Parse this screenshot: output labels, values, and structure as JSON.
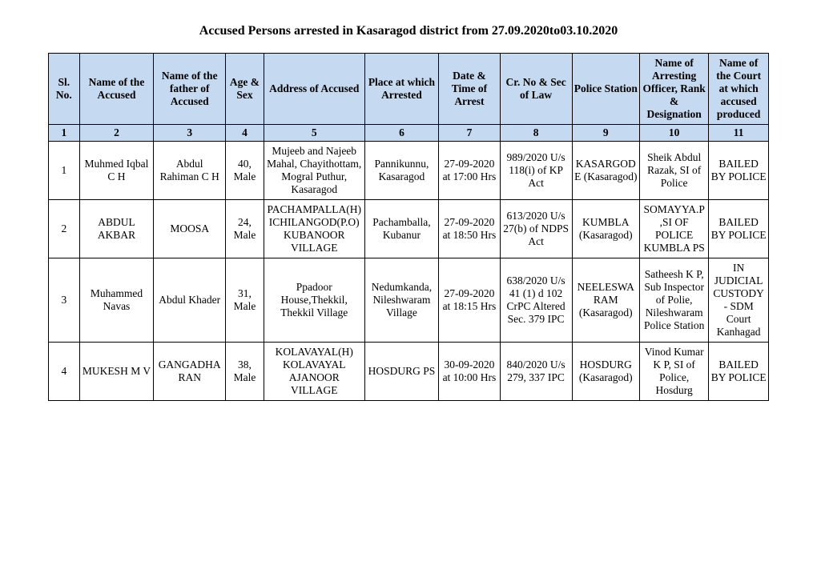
{
  "title": "Accused Persons arrested in   Kasaragod   district from  27.09.2020to03.10.2020",
  "headers": [
    "Sl. No.",
    "Name of the Accused",
    "Name of the father of Accused",
    "Age & Sex",
    "Address of Accused",
    "Place at which Arrested",
    "Date & Time of Arrest",
    "Cr. No & Sec of Law",
    "Police Station",
    "Name of Arresting Officer, Rank & Designation",
    "Name of the Court at which accused produced"
  ],
  "numrow": [
    "1",
    "2",
    "3",
    "4",
    "5",
    "6",
    "7",
    "8",
    "9",
    "10",
    "11"
  ],
  "rows": [
    {
      "c1": "1",
      "c2": "Muhmed Iqbal C H",
      "c3": "Abdul Rahiman C H",
      "c4": "40, Male",
      "c5": "Mujeeb and Najeeb Mahal, Chayithottam, Mogral Puthur, Kasaragod",
      "c6": "Pannikunnu, Kasaragod",
      "c7": "27-09-2020 at 17:00 Hrs",
      "c8": "989/2020 U/s 118(i) of KP Act",
      "c9": "KASARGODE (Kasaragod)",
      "c10": "Sheik Abdul Razak, SI of Police",
      "c11": "BAILED BY POLICE"
    },
    {
      "c1": "2",
      "c2": "ABDUL AKBAR",
      "c3": "MOOSA",
      "c4": "24, Male",
      "c5": "PACHAMPALLA(H) ICHILANGOD(P.O) KUBANOOR VILLAGE",
      "c6": "Pachamballa, Kubanur",
      "c7": "27-09-2020 at 18:50 Hrs",
      "c8": "613/2020 U/s 27(b) of NDPS Act",
      "c9": "KUMBLA (Kasaragod)",
      "c10": "SOMAYYA.P ,SI OF POLICE KUMBLA PS",
      "c11": "BAILED BY POLICE"
    },
    {
      "c1": "3",
      "c2": "Muhammed Navas",
      "c3": "Abdul Khader",
      "c4": "31, Male",
      "c5": "Ppadoor House,Thekkil, Thekkil Village",
      "c6": "Nedumkanda, Nileshwaram Village",
      "c7": "27-09-2020 at 18:15 Hrs",
      "c8": "638/2020 U/s 41 (1) d 102 CrPC Altered Sec. 379 IPC",
      "c9": "NEELESWARAM (Kasaragod)",
      "c10": "Satheesh K P, Sub Inspector of Polie, Nileshwaram Police Station",
      "c11": "IN JUDICIAL CUSTODY - SDM Court Kanhagad"
    },
    {
      "c1": "4",
      "c2": "MUKESH M V",
      "c3": "GANGADHARAN",
      "c4": "38, Male",
      "c5": "KOLAVAYAL(H) KOLAVAYAL AJANOOR VILLAGE",
      "c6": "HOSDURG PS",
      "c7": "30-09-2020 at 10:00 Hrs",
      "c8": "840/2020 U/s 279, 337 IPC",
      "c9": "HOSDURG (Kasaragod)",
      "c10": "Vinod Kumar K P, SI of Police, Hosdurg",
      "c11": "BAILED BY POLICE"
    }
  ]
}
